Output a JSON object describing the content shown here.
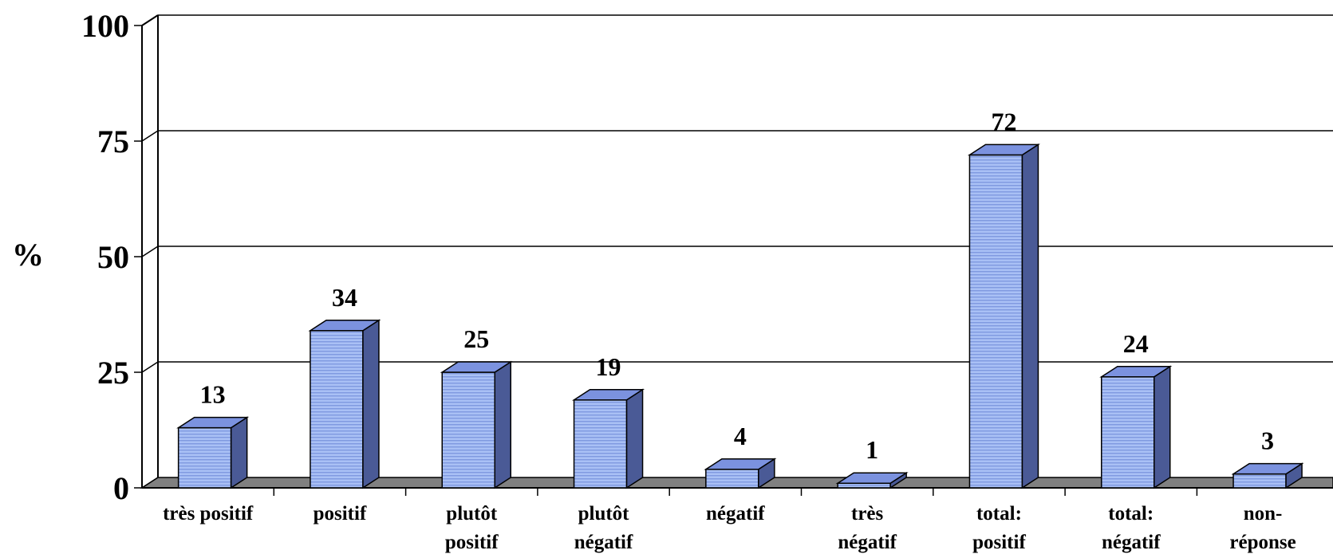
{
  "chart_data": {
    "type": "bar",
    "title": "",
    "xlabel": "",
    "ylabel": "%",
    "ylim": [
      0,
      100
    ],
    "yticks": [
      0,
      25,
      50,
      75,
      100
    ],
    "grid": true,
    "style": "3d",
    "categories": [
      [
        "très positif"
      ],
      [
        "positif"
      ],
      [
        "plutôt",
        "positif"
      ],
      [
        "plutôt",
        "négatif"
      ],
      [
        "négatif"
      ],
      [
        "très",
        "négatif"
      ],
      [
        "total:",
        "positif"
      ],
      [
        "total:",
        "négatif"
      ],
      [
        "non-",
        "réponse"
      ]
    ],
    "values": [
      13,
      34,
      25,
      19,
      4,
      1,
      72,
      24,
      3
    ],
    "data_labels": [
      "13",
      "34",
      "25",
      "19",
      "4",
      "1",
      "72",
      "24",
      "3"
    ],
    "colors": {
      "bar_front": "#a9c0f5",
      "bar_stripe": "#7f99e0",
      "bar_top": "#7b92df",
      "bar_side": "#4a5a96",
      "floor": "#808080"
    }
  }
}
